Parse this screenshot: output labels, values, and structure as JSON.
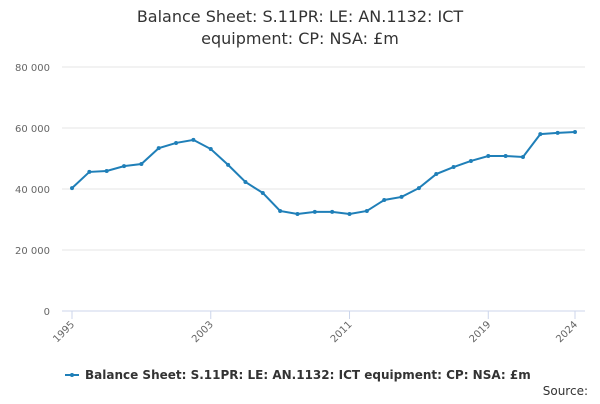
{
  "chart_data": {
    "type": "line",
    "title": "Balance Sheet: S.11PR: LE: AN.1132: ICT equipment: CP: NSA: £m",
    "x": [
      1995,
      1996,
      1997,
      1998,
      1999,
      2000,
      2001,
      2002,
      2003,
      2004,
      2005,
      2006,
      2007,
      2008,
      2009,
      2010,
      2011,
      2012,
      2013,
      2014,
      2015,
      2016,
      2017,
      2018,
      2019,
      2020,
      2021,
      2022,
      2023,
      2024
    ],
    "series": [
      {
        "name": "Balance Sheet: S.11PR: LE: AN.1132: ICT equipment: CP: NSA: £m",
        "color": "#1f7fb8",
        "values": [
          40300,
          45600,
          45900,
          47500,
          48200,
          53400,
          55100,
          56100,
          53100,
          47900,
          42300,
          38700,
          32800,
          31800,
          32500,
          32500,
          31800,
          32800,
          36400,
          37400,
          40300,
          44900,
          47200,
          49200,
          50800,
          50800,
          50500,
          58000,
          58400,
          58700
        ]
      }
    ],
    "xlim": [
      1995,
      2024
    ],
    "xticks": [
      1995,
      2003,
      2011,
      2019,
      2024
    ],
    "ylim": [
      0,
      80000
    ],
    "yticks": [
      0,
      {
        "value": 20000,
        "label": "20 000"
      },
      {
        "value": 40000,
        "label": "40 000"
      },
      {
        "value": 60000,
        "label": "60 000"
      },
      {
        "value": 80000,
        "label": "80 000"
      }
    ],
    "grid": true,
    "legend": "bottom",
    "source": "Source:"
  }
}
